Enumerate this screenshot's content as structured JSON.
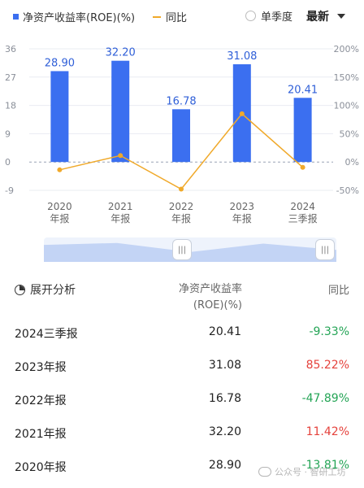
{
  "legend": {
    "roe_label": "净资产收益率(ROE)(%)",
    "yoy_label": "同比"
  },
  "controls": {
    "single_quarter_label": "单季度",
    "sort_label": "最新"
  },
  "chart_data": {
    "type": "bar",
    "categories": [
      [
        "2020",
        "年报"
      ],
      [
        "2021",
        "年报"
      ],
      [
        "2022",
        "年报"
      ],
      [
        "2023",
        "年报"
      ],
      [
        "2024",
        "三季报"
      ]
    ],
    "series": [
      {
        "name": "净资产收益率(ROE)(%)",
        "type": "bar",
        "axis": "left",
        "color": "#3b6ff0",
        "values": [
          28.9,
          32.2,
          16.78,
          31.08,
          20.41
        ],
        "labels": [
          "28.90",
          "32.20",
          "16.78",
          "31.08",
          "20.41"
        ]
      },
      {
        "name": "同比",
        "type": "line",
        "axis": "right",
        "color": "#f0a92a",
        "values": [
          -13.81,
          11.42,
          -47.89,
          85.22,
          -9.33
        ]
      }
    ],
    "left_axis": {
      "min": -9,
      "max": 36,
      "ticks": [
        36,
        27,
        18,
        9,
        0,
        -9
      ]
    },
    "right_axis": {
      "min": -50,
      "max": 200,
      "ticks": [
        "200%",
        "150%",
        "100%",
        "50%",
        "0%",
        "-50%"
      ]
    },
    "grid": true,
    "legend_position": "top-left"
  },
  "table": {
    "header": {
      "analysis": "展开分析",
      "roe": "净资产收益率(ROE)(%)",
      "yoy": "同比"
    },
    "rows": [
      {
        "name": "2024三季报",
        "roe": "20.41",
        "yoy": "-9.33%",
        "dir": "neg"
      },
      {
        "name": "2023年报",
        "roe": "31.08",
        "yoy": "85.22%",
        "dir": "pos"
      },
      {
        "name": "2022年报",
        "roe": "16.78",
        "yoy": "-47.89%",
        "dir": "neg"
      },
      {
        "name": "2021年报",
        "roe": "32.20",
        "yoy": "11.42%",
        "dir": "pos"
      },
      {
        "name": "2020年报",
        "roe": "28.90",
        "yoy": "-13.81%",
        "dir": "neg"
      }
    ]
  },
  "watermark": "公众号 · 智研工坊"
}
